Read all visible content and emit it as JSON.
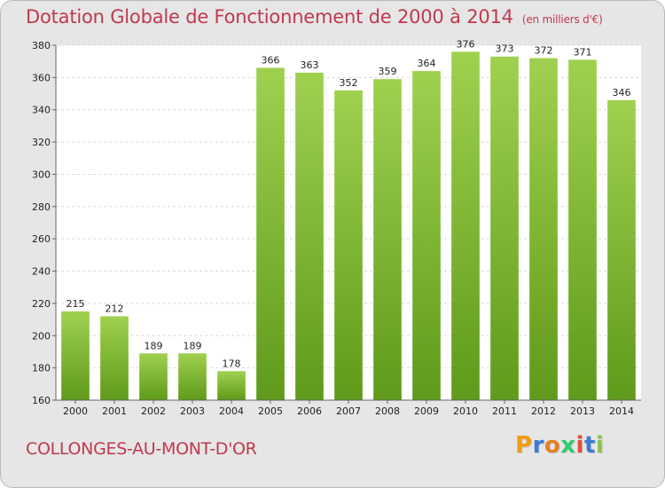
{
  "title": "Dotation Globale de Fonctionnement de 2000 à 2014",
  "unit": "(en milliers d'€)",
  "place": "COLLONGES-AU-MONT-D'OR",
  "logo": {
    "letters": [
      "P",
      "r",
      "o",
      "x",
      "i",
      "t",
      "i"
    ],
    "colors": [
      "#f39c12",
      "#3a7bd5",
      "#e67e22",
      "#2ecc71",
      "#e74c3c",
      "#3a7bd5",
      "#8bc34a"
    ]
  },
  "colors": {
    "bar_top": "#9fd14f",
    "bar_bottom": "#5f9a1a",
    "text_accent": "#c0394f",
    "grid": "#d8d8d8"
  },
  "chart_data": {
    "type": "bar",
    "categories": [
      "2000",
      "2001",
      "2002",
      "2003",
      "2004",
      "2005",
      "2006",
      "2007",
      "2008",
      "2009",
      "2010",
      "2011",
      "2012",
      "2013",
      "2014"
    ],
    "values": [
      215,
      212,
      189,
      189,
      178,
      366,
      363,
      352,
      359,
      364,
      376,
      373,
      372,
      371,
      346
    ],
    "title": "Dotation Globale de Fonctionnement de 2000 à 2014",
    "ylim": [
      160,
      380
    ],
    "yticks": [
      160,
      180,
      200,
      220,
      240,
      260,
      280,
      300,
      320,
      340,
      360,
      380
    ],
    "grid": true
  }
}
